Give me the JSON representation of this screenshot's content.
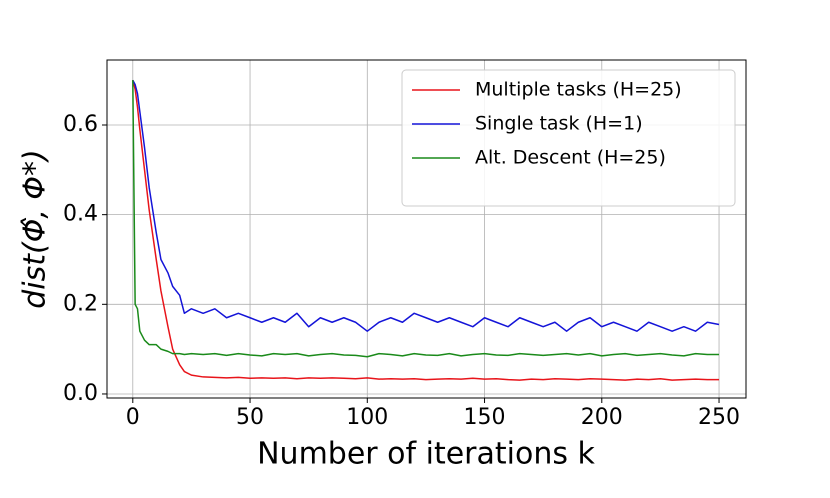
{
  "chart_data": {
    "type": "line",
    "xlabel": "Number of iterations k",
    "ylabel": "dist(Φ̂, Φ*)",
    "x": [
      0,
      1,
      2,
      3,
      5,
      7,
      10,
      12,
      15,
      17,
      20,
      22,
      25,
      30,
      35,
      40,
      45,
      50,
      55,
      60,
      65,
      70,
      75,
      80,
      85,
      90,
      95,
      100,
      105,
      110,
      115,
      120,
      125,
      130,
      135,
      140,
      145,
      150,
      155,
      160,
      165,
      170,
      175,
      180,
      185,
      190,
      195,
      200,
      205,
      210,
      215,
      220,
      225,
      230,
      235,
      240,
      245,
      250
    ],
    "series": [
      {
        "name": "Multiple tasks (H=25)",
        "color": "#e8141a",
        "values": [
          0.7,
          0.68,
          0.64,
          0.59,
          0.5,
          0.41,
          0.3,
          0.23,
          0.15,
          0.1,
          0.065,
          0.05,
          0.042,
          0.038,
          0.037,
          0.036,
          0.037,
          0.035,
          0.036,
          0.035,
          0.036,
          0.034,
          0.036,
          0.035,
          0.036,
          0.035,
          0.034,
          0.036,
          0.033,
          0.034,
          0.033,
          0.034,
          0.032,
          0.033,
          0.034,
          0.033,
          0.035,
          0.033,
          0.034,
          0.032,
          0.031,
          0.033,
          0.032,
          0.034,
          0.033,
          0.032,
          0.034,
          0.033,
          0.032,
          0.031,
          0.033,
          0.032,
          0.034,
          0.031,
          0.032,
          0.033,
          0.032,
          0.032
        ]
      },
      {
        "name": "Single task (H=1)",
        "color": "#1414d8",
        "values": [
          0.7,
          0.69,
          0.67,
          0.63,
          0.55,
          0.46,
          0.36,
          0.3,
          0.27,
          0.24,
          0.22,
          0.18,
          0.19,
          0.18,
          0.19,
          0.17,
          0.18,
          0.17,
          0.16,
          0.17,
          0.16,
          0.18,
          0.15,
          0.17,
          0.16,
          0.17,
          0.16,
          0.14,
          0.16,
          0.17,
          0.16,
          0.18,
          0.17,
          0.16,
          0.17,
          0.16,
          0.15,
          0.17,
          0.16,
          0.15,
          0.17,
          0.16,
          0.15,
          0.16,
          0.14,
          0.16,
          0.17,
          0.15,
          0.16,
          0.15,
          0.14,
          0.16,
          0.15,
          0.14,
          0.15,
          0.14,
          0.16,
          0.155
        ]
      },
      {
        "name": "Alt. Descent (H=25)",
        "color": "#1a8a1a",
        "values": [
          0.7,
          0.2,
          0.19,
          0.14,
          0.12,
          0.11,
          0.11,
          0.1,
          0.095,
          0.09,
          0.09,
          0.088,
          0.09,
          0.088,
          0.09,
          0.086,
          0.09,
          0.087,
          0.085,
          0.09,
          0.088,
          0.09,
          0.085,
          0.088,
          0.09,
          0.087,
          0.086,
          0.083,
          0.09,
          0.088,
          0.085,
          0.09,
          0.087,
          0.086,
          0.09,
          0.085,
          0.088,
          0.09,
          0.087,
          0.086,
          0.09,
          0.088,
          0.086,
          0.088,
          0.09,
          0.087,
          0.09,
          0.085,
          0.088,
          0.09,
          0.086,
          0.088,
          0.09,
          0.087,
          0.085,
          0.09,
          0.088,
          0.088
        ]
      }
    ],
    "xlim": [
      -11,
      261.5
    ],
    "ylim": [
      -0.009,
      0.745
    ],
    "xticks": [
      0,
      50,
      100,
      150,
      200,
      250
    ],
    "yticks": [
      {
        "value": 0,
        "label": "0.0"
      },
      0.2,
      0.4,
      0.6
    ],
    "grid": true,
    "legend": "upper-right"
  }
}
